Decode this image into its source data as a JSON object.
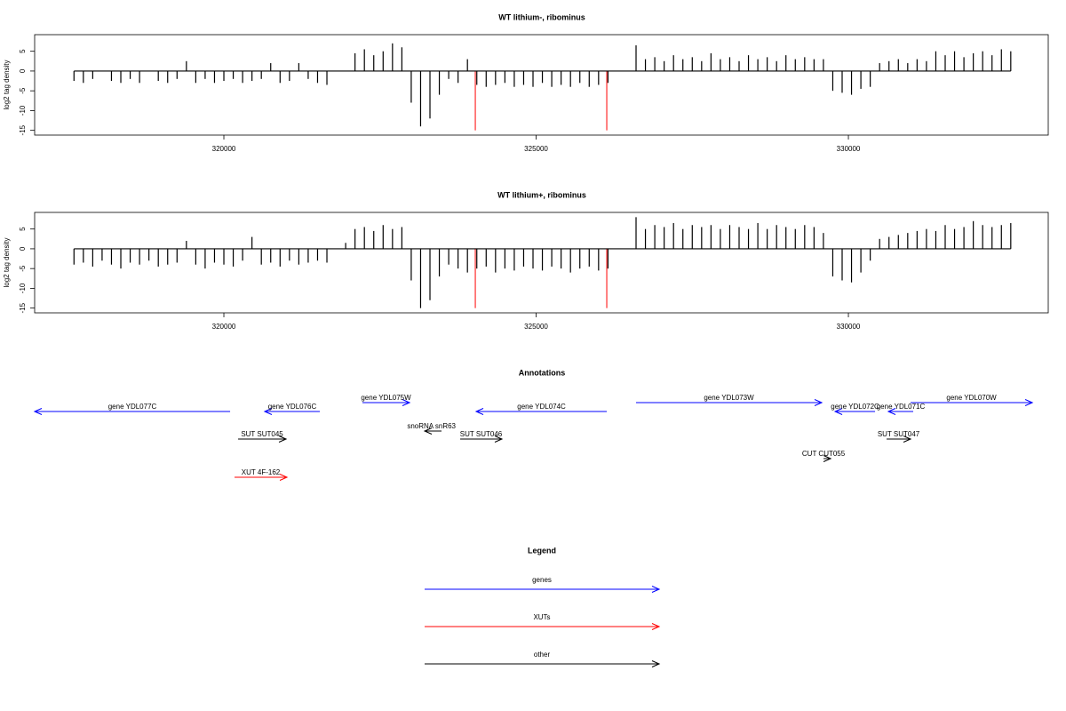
{
  "chart_data": [
    {
      "type": "bar",
      "title": "WT lithium-, ribominus",
      "ylabel": "log2 tag density",
      "color": "#000000",
      "xlim": [
        316970,
        333200
      ],
      "ylim": [
        -16.2,
        9.2
      ],
      "xticks": [
        320000,
        325000,
        330000
      ],
      "yticks": [
        -15,
        -10,
        -5,
        0,
        5
      ],
      "x": [
        317600,
        317750,
        317900,
        318050,
        318200,
        318350,
        318500,
        318650,
        318800,
        318950,
        319100,
        319250,
        319400,
        319550,
        319700,
        319850,
        320000,
        320150,
        320300,
        320450,
        320600,
        320750,
        320900,
        321050,
        321200,
        321350,
        321500,
        321650,
        321800,
        321950,
        322100,
        322250,
        322400,
        322550,
        322700,
        322850,
        323000,
        323150,
        323300,
        323450,
        323600,
        323750,
        323900,
        324050,
        324200,
        324350,
        324500,
        324650,
        324800,
        324950,
        325100,
        325250,
        325400,
        325550,
        325700,
        325850,
        326000,
        326150,
        326300,
        326450,
        326600,
        326750,
        326900,
        327050,
        327200,
        327350,
        327500,
        327650,
        327800,
        327950,
        328100,
        328250,
        328400,
        328550,
        328700,
        328850,
        329000,
        329150,
        329300,
        329450,
        329600,
        329750,
        329900,
        330050,
        330200,
        330350,
        330500,
        330650,
        330800,
        330950,
        331100,
        331250,
        331400,
        331550,
        331700,
        331850,
        332000,
        332150,
        332300,
        332450,
        332600
      ],
      "values": [
        -2.5,
        -3,
        -2,
        0,
        -2.5,
        -3,
        -2,
        -3,
        0,
        -2.5,
        -3,
        -2,
        2.5,
        -3,
        -2,
        -3,
        -2.5,
        -2,
        -3,
        -2.5,
        -2,
        2,
        -3,
        -2.5,
        2,
        -2,
        -3,
        -3.5,
        0,
        0,
        4.5,
        5.5,
        4,
        5,
        7,
        6,
        -8,
        -14,
        -12,
        -6,
        -2,
        -3,
        3,
        -3.5,
        -4,
        -3.5,
        -3,
        -4,
        -3.5,
        -4,
        -3,
        -4,
        -3.5,
        -4,
        -3,
        -4,
        -3.5,
        -3,
        0,
        0,
        6.5,
        3,
        3.5,
        2.5,
        4,
        3,
        3.5,
        2.5,
        4.5,
        3,
        3.5,
        2.5,
        4,
        3,
        3.5,
        2.5,
        4,
        3,
        3.5,
        3,
        3,
        -5,
        -5.5,
        -6,
        -4.5,
        -4,
        2,
        2.5,
        3,
        2,
        3,
        2.5,
        5,
        4,
        5,
        3.5,
        4.5,
        5,
        4,
        5.5,
        5
      ],
      "highlight": {
        "color": "#ff0000",
        "x": [
          324026,
          326131
        ],
        "values": [
          -15,
          -15
        ]
      }
    },
    {
      "type": "bar",
      "title": "WT lithium+, ribominus",
      "ylabel": "log2 tag density",
      "color": "#000000",
      "xlim": [
        316970,
        333200
      ],
      "ylim": [
        -16.2,
        9.2
      ],
      "xticks": [
        320000,
        325000,
        330000
      ],
      "yticks": [
        -15,
        -10,
        -5,
        0,
        5
      ],
      "x": [
        317600,
        317750,
        317900,
        318050,
        318200,
        318350,
        318500,
        318650,
        318800,
        318950,
        319100,
        319250,
        319400,
        319550,
        319700,
        319850,
        320000,
        320150,
        320300,
        320450,
        320600,
        320750,
        320900,
        321050,
        321200,
        321350,
        321500,
        321650,
        321800,
        321950,
        322100,
        322250,
        322400,
        322550,
        322700,
        322850,
        323000,
        323150,
        323300,
        323450,
        323600,
        323750,
        323900,
        324050,
        324200,
        324350,
        324500,
        324650,
        324800,
        324950,
        325100,
        325250,
        325400,
        325550,
        325700,
        325850,
        326000,
        326150,
        326300,
        326450,
        326600,
        326750,
        326900,
        327050,
        327200,
        327350,
        327500,
        327650,
        327800,
        327950,
        328100,
        328250,
        328400,
        328550,
        328700,
        328850,
        329000,
        329150,
        329300,
        329450,
        329600,
        329750,
        329900,
        330050,
        330200,
        330350,
        330500,
        330650,
        330800,
        330950,
        331100,
        331250,
        331400,
        331550,
        331700,
        331850,
        332000,
        332150,
        332300,
        332450,
        332600
      ],
      "values": [
        -4,
        -3.5,
        -4.5,
        -3,
        -4,
        -5,
        -3.5,
        -4,
        -3,
        -4.5,
        -4,
        -3.5,
        2,
        -4,
        -5,
        -3.5,
        -4,
        -4.5,
        -3,
        3,
        -4,
        -3.5,
        -4.5,
        -3,
        -4,
        -3.5,
        -3,
        -3.5,
        0,
        1.5,
        5,
        5.5,
        4.5,
        6,
        5,
        5.5,
        -8,
        -15,
        -13,
        -7,
        -4,
        -5,
        -6,
        -5,
        -4.5,
        -6,
        -5,
        -5.5,
        -4.5,
        -5,
        -5.5,
        -4.5,
        -5,
        -6,
        -5,
        -4.5,
        -5.5,
        -5,
        0,
        0,
        8,
        5,
        6,
        5.5,
        6.5,
        5,
        6,
        5.5,
        6,
        5,
        6,
        5.5,
        5,
        6.5,
        5,
        6,
        5.5,
        5,
        6,
        5.5,
        4,
        -7,
        -8,
        -8.5,
        -6,
        -3,
        2.5,
        3,
        3.5,
        4,
        4.5,
        5,
        4.5,
        6,
        5,
        5.5,
        7,
        6,
        5.5,
        6,
        6.5
      ],
      "highlight": {
        "color": "#ff0000",
        "x": [
          324026,
          326131
        ],
        "values": [
          -15,
          -15
        ]
      }
    }
  ],
  "annotations": {
    "title": "Annotations",
    "items": [
      {
        "label": "gene YDL077C",
        "from": 320100,
        "to": 316970,
        "color": "#0000ff"
      },
      {
        "label": "gene YDL076C",
        "from": 321536,
        "to": 320654,
        "color": "#0000ff"
      },
      {
        "label": "gene YDL075W",
        "from": 322219,
        "to": 322973,
        "color": "#0000ff"
      },
      {
        "label": "snoRNA snR63",
        "from": 323485,
        "to": 323215,
        "color": "#000000"
      },
      {
        "label": "gene YDL074C",
        "from": 326131,
        "to": 324040,
        "color": "#0000ff"
      },
      {
        "label": "gene YDL073W",
        "from": 326600,
        "to": 329573,
        "color": "#0000ff"
      },
      {
        "label": "gene YDL072C",
        "from": 330427,
        "to": 329787,
        "color": "#0000ff"
      },
      {
        "label": "gene YDL071C",
        "from": 331038,
        "to": 330640,
        "color": "#0000ff"
      },
      {
        "label": "gene YDL070W",
        "from": 330996,
        "to": 332945,
        "color": "#0000ff"
      },
      {
        "label": "SUT SUT045",
        "from": 320228,
        "to": 320996,
        "color": "#000000"
      },
      {
        "label": "SUT SUT046",
        "from": 323784,
        "to": 324452,
        "color": "#000000"
      },
      {
        "label": "SUT SUT047",
        "from": 330612,
        "to": 330996,
        "color": "#000000"
      },
      {
        "label": "CUT CUT055",
        "from": 329602,
        "to": 329716,
        "color": "#000000"
      },
      {
        "label": "XUT 4F-162",
        "from": 320171,
        "to": 321010,
        "color": "#ff0000"
      }
    ]
  },
  "legend": {
    "title": "Legend",
    "items": [
      {
        "name": "genes",
        "color": "#0000ff"
      },
      {
        "name": "XUTs",
        "color": "#ff0000"
      },
      {
        "name": "other",
        "color": "#000000"
      }
    ]
  }
}
